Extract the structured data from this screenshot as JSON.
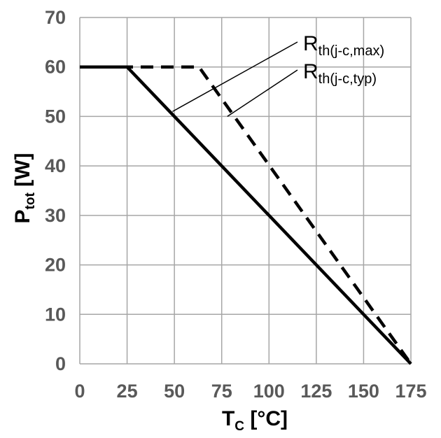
{
  "chart_data": {
    "type": "line",
    "xlabel": {
      "main": "T",
      "sub": "C",
      "unit": " [°C]"
    },
    "ylabel": {
      "main": "P",
      "sub": "tot",
      "unit": " [W]"
    },
    "xlim": [
      0,
      175
    ],
    "ylim": [
      0,
      70
    ],
    "x_ticks": [
      "0",
      "25",
      "50",
      "75",
      "100",
      "125",
      "150",
      "175"
    ],
    "y_ticks": [
      "0",
      "10",
      "20",
      "30",
      "40",
      "50",
      "60",
      "70"
    ],
    "grid": true,
    "series": [
      {
        "name": "Rth(j-c,max)",
        "style": "solid",
        "x": [
          0,
          25,
          175
        ],
        "y": [
          60,
          60,
          0
        ]
      },
      {
        "name": "Rth(j-c,typ)",
        "style": "dashed",
        "x": [
          0,
          63,
          175
        ],
        "y": [
          60,
          60,
          0
        ]
      }
    ],
    "annotations": [
      {
        "main": "R",
        "sub": "th(j-c,max)",
        "points_to": "Rth(j-c,max)",
        "x": 49,
        "y": 51
      },
      {
        "main": "R",
        "sub": "th(j-c,typ)",
        "points_to": "Rth(j-c,typ)",
        "x": 78,
        "y": 50
      }
    ],
    "colors": {
      "line": "#000000",
      "grid": "#a6a6a6",
      "ticks": "#595959"
    }
  }
}
